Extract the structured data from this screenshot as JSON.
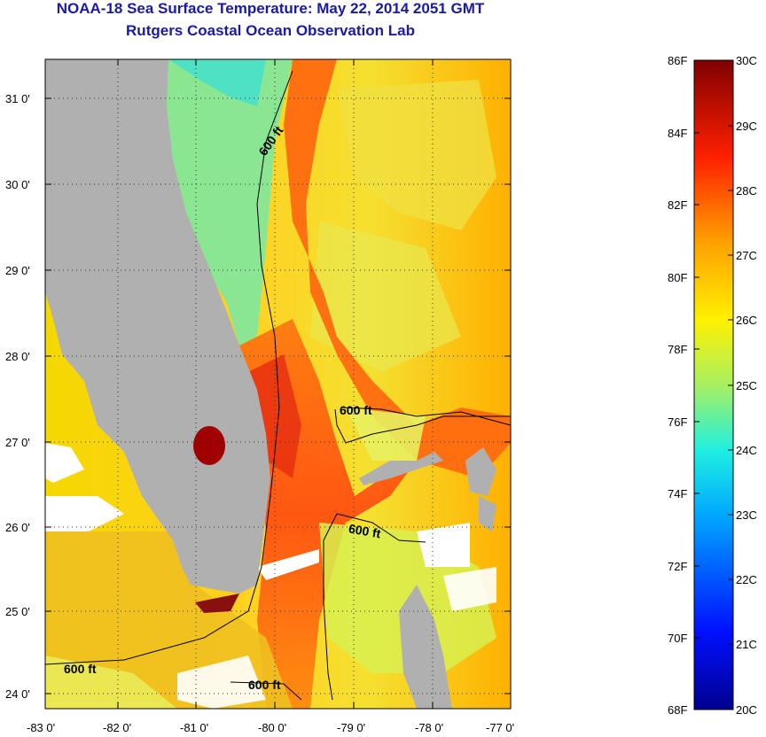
{
  "header": {
    "title": "NOAA-18 Sea Surface Temperature:  May 22, 2014 2051 GMT",
    "subtitle": "Rutgers Coastal Ocean Observation Lab"
  },
  "map": {
    "lat_labels": [
      "31 0'",
      "30 0'",
      "29 0'",
      "28 0'",
      "27 0'",
      "26 0'",
      "25 0'",
      "24 0'"
    ],
    "lon_labels": [
      "-83 0'",
      "-82 0'",
      "-81 0'",
      "-80 0'",
      "-79 0'",
      "-78 0'",
      "-77 0'"
    ],
    "contour_labels": [
      "600 ft",
      "600 ft",
      "600 ft",
      "600 ft",
      "600 ft"
    ]
  },
  "colorbar": {
    "fahrenheit_labels": [
      "86F",
      "84F",
      "82F",
      "80F",
      "78F",
      "76F",
      "74F",
      "72F",
      "70F",
      "68F"
    ],
    "celsius_labels": [
      "30C",
      "29C",
      "28C",
      "27C",
      "26C",
      "25C",
      "24C",
      "23C",
      "22C",
      "21C",
      "20C"
    ]
  }
}
